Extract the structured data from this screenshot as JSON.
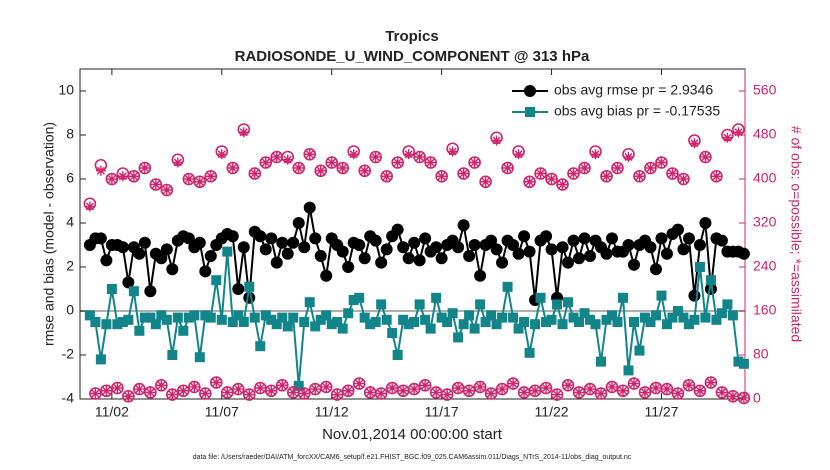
{
  "chart_data": {
    "type": "line",
    "title": [
      "Tropics",
      "RADIOSONDE_U_WIND_COMPONENT @ 313 hPa"
    ],
    "xlabel": "Nov.01,2014 00:00:00 start",
    "ylabel": "rmse and bias (model - observation)",
    "y2label": "# of obs: o=possible; *=assimilated",
    "footnote": "data file: /Users/raeder/DAI/ATM_forcXX/CAM6_setup/f.e21.FHIST_BGC.f09_025.CAM6assim.011/Diags_NTrS_2014-11/obs_diag_output.nc",
    "xlim": [
      -0.45,
      29.8
    ],
    "xticks": [
      {
        "value": 1,
        "label": "11/02"
      },
      {
        "value": 6,
        "label": "11/07"
      },
      {
        "value": 11,
        "label": "11/12"
      },
      {
        "value": 16,
        "label": "11/17"
      },
      {
        "value": 21,
        "label": "11/22"
      },
      {
        "value": 26,
        "label": "11/27"
      }
    ],
    "ylim": [
      -4,
      11
    ],
    "yticks": [
      -4,
      -2,
      0,
      2,
      4,
      6,
      8,
      10
    ],
    "y2lim": [
      0,
      600
    ],
    "y2ticks": [
      0,
      80,
      160,
      240,
      320,
      400,
      480,
      560
    ],
    "y2color": "#d0246c",
    "legend": "upper right",
    "x": [
      0,
      0.25,
      0.5,
      0.75,
      1,
      1.25,
      1.5,
      1.75,
      2,
      2.25,
      2.5,
      2.75,
      3,
      3.25,
      3.5,
      3.75,
      4,
      4.25,
      4.5,
      4.75,
      5,
      5.25,
      5.5,
      5.75,
      6,
      6.25,
      6.5,
      6.75,
      7,
      7.25,
      7.5,
      7.75,
      8,
      8.25,
      8.5,
      8.75,
      9,
      9.25,
      9.5,
      9.75,
      10,
      10.25,
      10.5,
      10.75,
      11,
      11.25,
      11.5,
      11.75,
      12,
      12.25,
      12.5,
      12.75,
      13,
      13.25,
      13.5,
      13.75,
      14,
      14.25,
      14.5,
      14.75,
      15,
      15.25,
      15.5,
      15.75,
      16,
      16.25,
      16.5,
      16.75,
      17,
      17.25,
      17.5,
      17.75,
      18,
      18.25,
      18.5,
      18.75,
      19,
      19.25,
      19.5,
      19.75,
      20,
      20.25,
      20.5,
      20.75,
      21,
      21.25,
      21.5,
      21.75,
      22,
      22.25,
      22.5,
      22.75,
      23,
      23.25,
      23.5,
      23.75,
      24,
      24.25,
      24.5,
      24.75,
      25,
      25.25,
      25.5,
      25.75,
      26,
      26.25,
      26.5,
      26.75,
      27,
      27.25,
      27.5,
      27.75,
      28,
      28.25,
      28.5,
      28.75,
      29,
      29.25,
      29.5,
      29.75
    ],
    "series": [
      {
        "name": "obs avg rmse pr = 2.9346",
        "color": "#000000",
        "marker": "circle",
        "linestyle": "solid",
        "values": [
          3.0,
          3.3,
          3.3,
          2.3,
          3.0,
          3.0,
          2.9,
          1.3,
          2.9,
          2.6,
          3.1,
          0.9,
          2.6,
          2.4,
          2.8,
          1.9,
          3.2,
          3.4,
          3.3,
          2.9,
          3.1,
          1.8,
          2.5,
          3.0,
          3.3,
          3.5,
          3.4,
          1.0,
          2.9,
          0.6,
          3.6,
          3.4,
          2.8,
          3.3,
          2.2,
          3.1,
          2.6,
          3.1,
          4.0,
          2.9,
          4.7,
          3.3,
          2.5,
          1.6,
          3.3,
          3.0,
          2.7,
          2.0,
          3.1,
          3.0,
          2.4,
          3.4,
          3.2,
          2.2,
          2.8,
          3.4,
          3.7,
          2.9,
          2.4,
          3.1,
          2.3,
          3.3,
          2.7,
          2.9,
          2.4,
          3.0,
          3.2,
          2.9,
          3.9,
          2.5,
          3.0,
          1.6,
          3.0,
          3.2,
          2.8,
          2.2,
          3.2,
          3.0,
          2.6,
          3.4,
          2.7,
          0.5,
          3.2,
          3.4,
          2.8,
          0.6,
          2.9,
          2.2,
          3.2,
          2.4,
          3.3,
          2.5,
          3.2,
          2.9,
          2.6,
          3.3,
          2.7,
          2.7,
          3.0,
          2.1,
          3.0,
          3.2,
          2.9,
          1.9,
          3.3,
          2.6,
          3.5,
          3.7,
          2.8,
          3.3,
          0.7,
          3.0,
          4.0,
          1.0,
          3.3,
          3.2,
          2.7,
          2.7,
          2.7,
          2.6
        ]
      },
      {
        "name": "obs avg bias pr = -0.17535",
        "color": "#12858a",
        "marker": "square",
        "linestyle": "solid",
        "values": [
          -0.2,
          -0.5,
          -2.2,
          -0.6,
          1.0,
          -0.6,
          -0.5,
          -0.4,
          0.9,
          -0.9,
          -0.3,
          -0.3,
          -0.6,
          -0.2,
          -0.4,
          -2.0,
          -0.3,
          -0.9,
          -0.3,
          -0.2,
          -2.1,
          -0.2,
          -0.3,
          1.4,
          -0.4,
          2.7,
          -0.5,
          -0.2,
          -0.5,
          1.1,
          -0.3,
          -1.6,
          -0.2,
          -0.4,
          -0.6,
          -0.3,
          -0.7,
          -0.3,
          -3.4,
          -0.5,
          0.4,
          -0.7,
          -0.4,
          -0.2,
          -0.6,
          -0.5,
          -0.8,
          -0.1,
          0.5,
          0.6,
          -0.3,
          -0.6,
          -0.5,
          0.3,
          -0.4,
          -1.0,
          -2.0,
          -0.4,
          -0.6,
          -0.5,
          0.3,
          -0.4,
          -0.8,
          0.6,
          -0.3,
          -0.5,
          -0.1,
          -1.2,
          -0.6,
          -0.2,
          -0.8,
          0.3,
          -0.5,
          -0.2,
          -0.6,
          -0.3,
          1.1,
          -0.3,
          -0.8,
          -0.5,
          -1.9,
          -0.6,
          0.6,
          -0.5,
          -0.4,
          0.3,
          -0.6,
          0.4,
          -0.3,
          -0.5,
          -0.1,
          -0.4,
          -0.6,
          -2.3,
          -0.4,
          -0.2,
          -0.5,
          0.6,
          -2.7,
          -0.5,
          -1.8,
          -0.3,
          -0.5,
          -0.2,
          0.7,
          -0.6,
          -0.3,
          0.0,
          -0.3,
          -0.6,
          -0.4,
          2.0,
          -0.3,
          1.4,
          -0.4,
          -0.1,
          0.3,
          -0.2,
          -2.3,
          -2.4
        ]
      },
      {
        "color": "#d0246c",
        "marker": "o",
        "linestyle": "none",
        "axis": "y2",
        "values": [
          355,
          10,
          425,
          15,
          400,
          20,
          410,
          5,
          405,
          18,
          420,
          12,
          390,
          25,
          380,
          8,
          435,
          15,
          400,
          22,
          395,
          10,
          405,
          30,
          450,
          12,
          420,
          18,
          490,
          8,
          410,
          20,
          430,
          15,
          440,
          25,
          440,
          12,
          420,
          10,
          445,
          18,
          415,
          22,
          430,
          8,
          420,
          15,
          450,
          28,
          415,
          12,
          440,
          10,
          405,
          20,
          430,
          15,
          450,
          18,
          440,
          25,
          430,
          12,
          405,
          8,
          455,
          20,
          410,
          15,
          430,
          22,
          395,
          10,
          475,
          18,
          420,
          28,
          450,
          12,
          395,
          15,
          410,
          20,
          400,
          8,
          390,
          25,
          410,
          12,
          420,
          18,
          450,
          10,
          405,
          22,
          420,
          15,
          445,
          28,
          405,
          12,
          420,
          20,
          430,
          18,
          410,
          10,
          400,
          25,
          470,
          15,
          440,
          30,
          405,
          12,
          480,
          5,
          490,
          2
        ]
      },
      {
        "color": "#d0246c",
        "marker": "*",
        "linestyle": "none",
        "axis": "y2",
        "values": [
          350,
          10,
          415,
          15,
          400,
          20,
          405,
          5,
          405,
          18,
          420,
          12,
          390,
          25,
          380,
          8,
          430,
          15,
          400,
          22,
          395,
          10,
          405,
          30,
          445,
          12,
          420,
          18,
          485,
          8,
          410,
          20,
          430,
          15,
          440,
          25,
          435,
          12,
          420,
          10,
          445,
          18,
          415,
          22,
          430,
          8,
          420,
          15,
          445,
          28,
          415,
          12,
          440,
          10,
          405,
          20,
          430,
          15,
          445,
          18,
          440,
          25,
          430,
          12,
          405,
          8,
          450,
          20,
          410,
          15,
          430,
          22,
          395,
          10,
          470,
          18,
          420,
          28,
          445,
          12,
          395,
          15,
          410,
          20,
          400,
          8,
          390,
          25,
          410,
          12,
          420,
          18,
          445,
          10,
          405,
          22,
          420,
          15,
          440,
          28,
          405,
          12,
          420,
          20,
          430,
          18,
          410,
          10,
          400,
          25,
          465,
          15,
          440,
          30,
          405,
          12,
          475,
          5,
          485,
          2
        ]
      }
    ]
  }
}
